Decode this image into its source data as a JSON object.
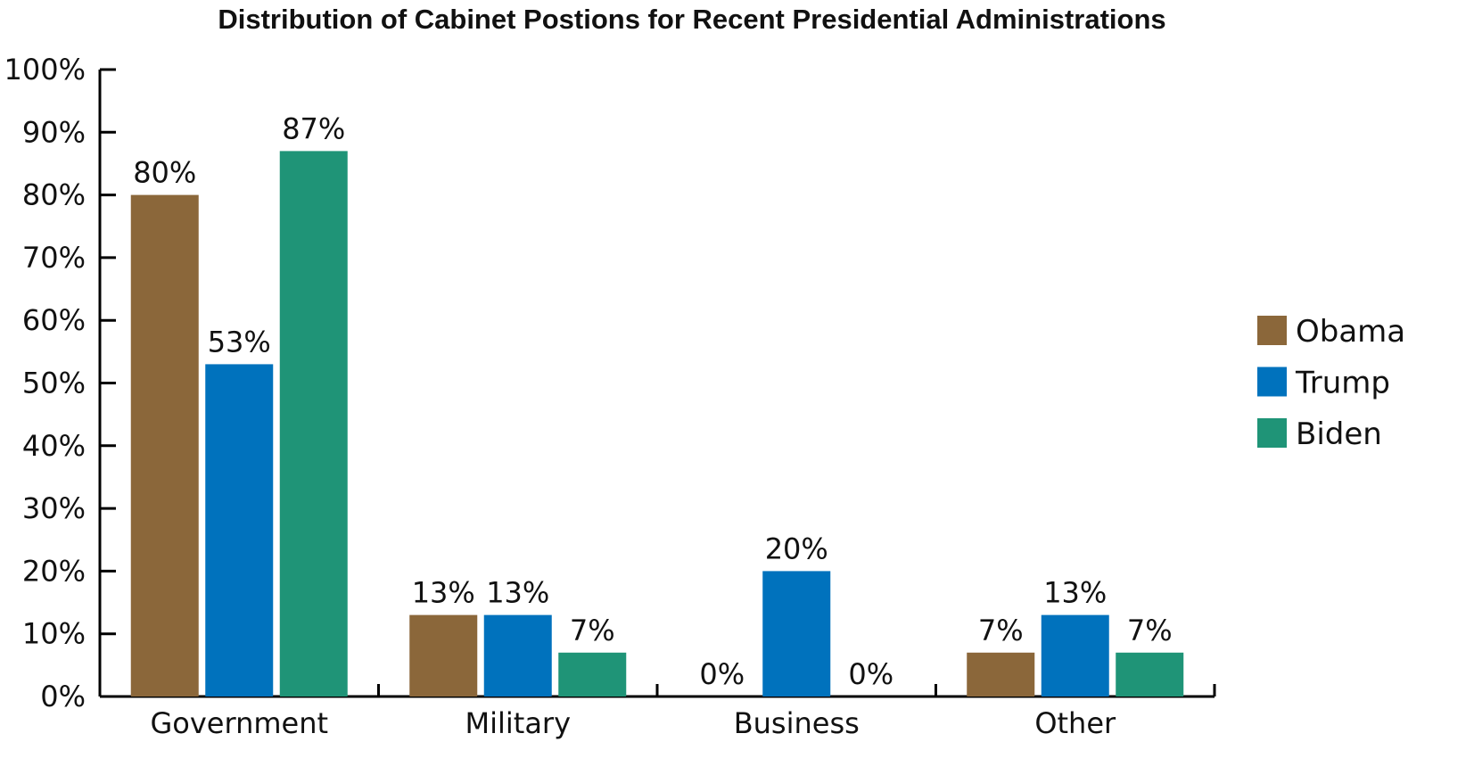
{
  "chart_data": {
    "type": "bar",
    "title": "Distribution of Cabinet Postions for Recent Presidential Administrations",
    "categories": [
      "Government",
      "Military",
      "Business",
      "Other"
    ],
    "series": [
      {
        "name": "Obama",
        "color": "#8B673A",
        "values": [
          80,
          13,
          0,
          7
        ],
        "labels": [
          "80%",
          "13%",
          "0%",
          "7%"
        ]
      },
      {
        "name": "Trump",
        "color": "#0072BD",
        "values": [
          53,
          13,
          20,
          13
        ],
        "labels": [
          "53%",
          "13%",
          "20%",
          "13%"
        ]
      },
      {
        "name": "Biden",
        "color": "#1F9477",
        "values": [
          87,
          7,
          0,
          7
        ],
        "labels": [
          "87%",
          "7%",
          "0%",
          "7%"
        ]
      }
    ],
    "y_ticks": [
      "0%",
      "10%",
      "20%",
      "30%",
      "40%",
      "50%",
      "60%",
      "70%",
      "80%",
      "90%",
      "100%"
    ],
    "ylim": [
      0,
      100
    ],
    "xlabel": "",
    "ylabel": "",
    "grid": false,
    "legend_position": "right"
  }
}
